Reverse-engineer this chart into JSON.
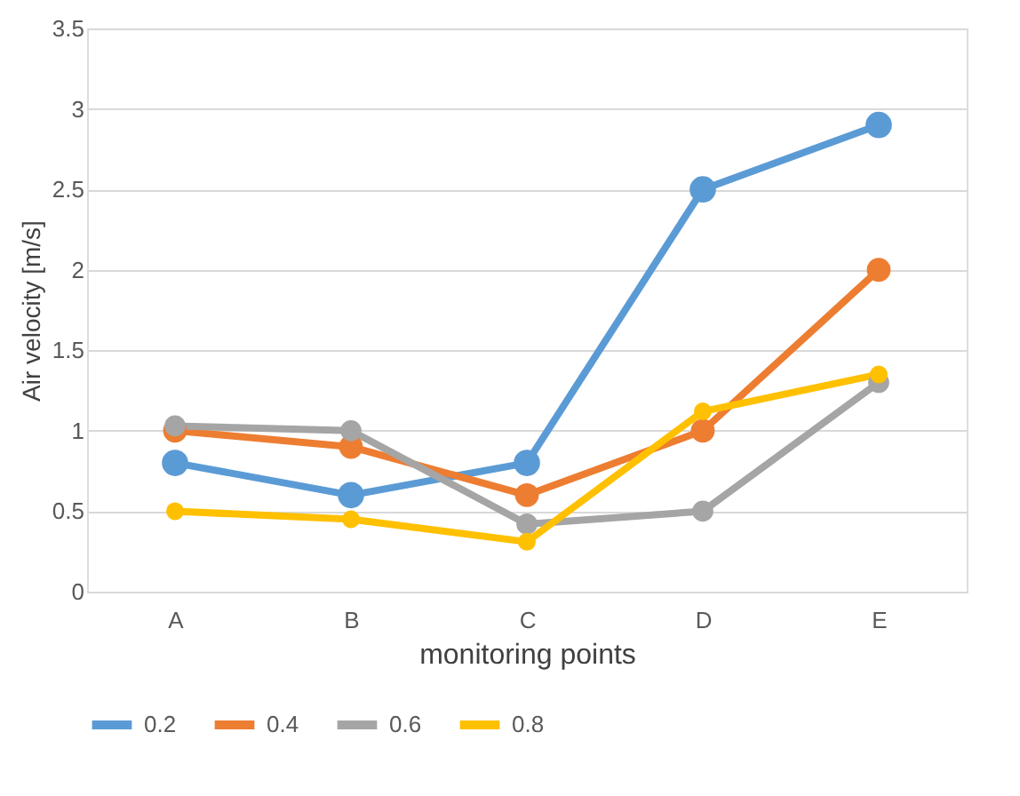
{
  "chart_data": {
    "type": "line",
    "xlabel": "monitoring points",
    "ylabel": "Air velocity [m/s]",
    "categories": [
      "A",
      "B",
      "C",
      "D",
      "E"
    ],
    "series": [
      {
        "name": "0.2",
        "color": "#5b9bd5",
        "values": [
          0.8,
          0.6,
          0.8,
          2.5,
          2.9
        ]
      },
      {
        "name": "0.4",
        "color": "#ed7d31",
        "values": [
          1.0,
          0.9,
          0.6,
          1.0,
          2.0
        ]
      },
      {
        "name": "0.6",
        "color": "#a5a5a5",
        "values": [
          1.03,
          1.0,
          0.42,
          0.5,
          1.3
        ]
      },
      {
        "name": "0.8",
        "color": "#ffc000",
        "values": [
          0.5,
          0.45,
          0.31,
          1.12,
          1.35
        ]
      }
    ],
    "ylim": [
      0,
      3.5
    ],
    "yticks": [
      0,
      0.5,
      1,
      1.5,
      2,
      2.5,
      3,
      3.5
    ],
    "grid": "y",
    "legend": "bottom",
    "marker": "circle",
    "line_style": "solid"
  }
}
